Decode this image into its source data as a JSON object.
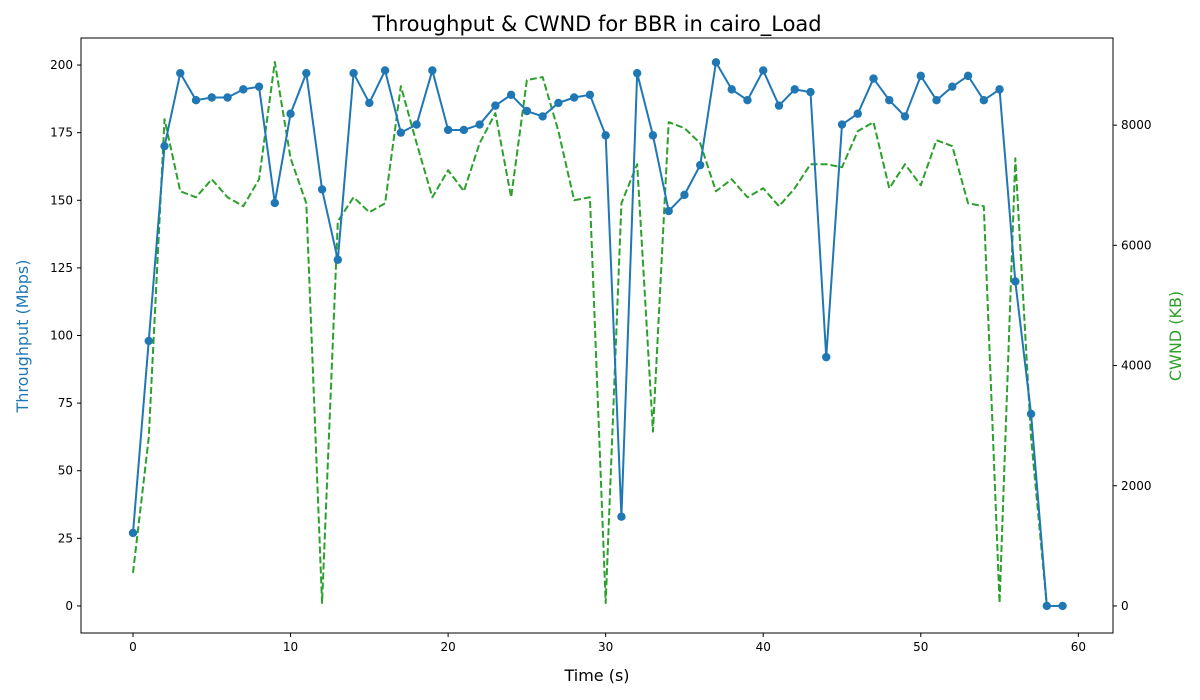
{
  "chart_data": {
    "type": "line",
    "title": "Throughput & CWND for BBR in cairo_Load",
    "xlabel": "Time (s)",
    "ylabel_left": "Throughput (Mbps)",
    "ylabel_right": "CWND (KB)",
    "xlim": [
      -3.3,
      62.2
    ],
    "ylim_left": [
      -10,
      210
    ],
    "ylim_right": [
      -450,
      9450
    ],
    "x_ticks": [
      0,
      10,
      20,
      30,
      40,
      50,
      60
    ],
    "y_left_ticks": [
      0,
      25,
      50,
      75,
      100,
      125,
      150,
      175,
      200
    ],
    "y_right_ticks": [
      0,
      2000,
      4000,
      6000,
      8000
    ],
    "grid": false,
    "x": [
      0,
      1,
      2,
      3,
      4,
      5,
      6,
      7,
      8,
      9,
      10,
      11,
      12,
      13,
      14,
      15,
      16,
      17,
      18,
      19,
      20,
      21,
      22,
      23,
      24,
      25,
      26,
      27,
      28,
      29,
      30,
      31,
      32,
      33,
      34,
      35,
      36,
      37,
      38,
      39,
      40,
      41,
      42,
      43,
      44,
      45,
      46,
      47,
      48,
      49,
      50,
      51,
      52,
      53,
      54,
      55,
      56,
      57,
      58,
      59
    ],
    "series": [
      {
        "axis": "left",
        "color": "#1f77b4",
        "style": "solid",
        "marker": "circle",
        "values": [
          27,
          98,
          170,
          197,
          187,
          188,
          188,
          191,
          192,
          149,
          182,
          197,
          154,
          128,
          197,
          186,
          198,
          175,
          178,
          198,
          176,
          176,
          178,
          185,
          189,
          183,
          181,
          186,
          188,
          189,
          174,
          33,
          197,
          174,
          146,
          152,
          163,
          201,
          191,
          187,
          198,
          185,
          191,
          190,
          92,
          178,
          182,
          195,
          187,
          181,
          196,
          187,
          192,
          196,
          187,
          191,
          120,
          71,
          0,
          0
        ]
      },
      {
        "axis": "right",
        "color": "#2ca02c",
        "style": "dashed",
        "marker": "none",
        "values": [
          550,
          2800,
          8100,
          6900,
          6800,
          7100,
          6800,
          6650,
          7100,
          9050,
          7450,
          6700,
          50,
          6400,
          6800,
          6550,
          6700,
          8650,
          7700,
          6800,
          7250,
          6900,
          7700,
          8200,
          6800,
          8750,
          8800,
          7900,
          6750,
          6800,
          50,
          6700,
          7350,
          2900,
          8050,
          7950,
          7700,
          6900,
          7100,
          6800,
          6950,
          6650,
          6950,
          7350,
          7350,
          7300,
          7900,
          8050,
          6950,
          7350,
          7000,
          7750,
          7650,
          6700,
          6650,
          50,
          7450,
          2800,
          0,
          0
        ]
      }
    ]
  }
}
